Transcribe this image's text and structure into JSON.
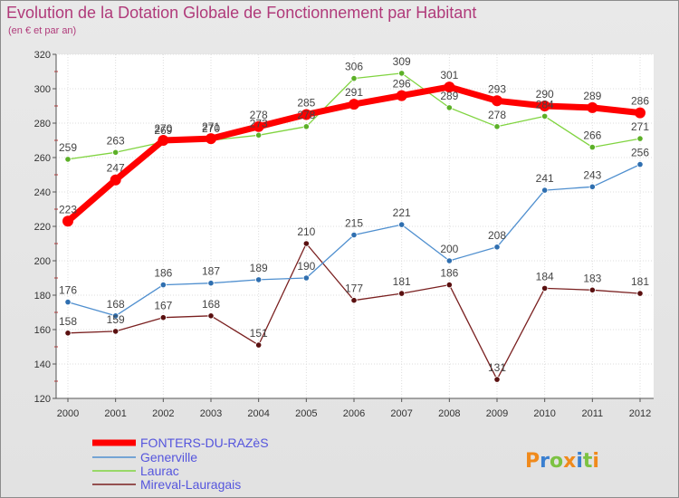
{
  "chart_data": {
    "type": "line",
    "title": "Evolution de la Dotation Globale de Fonctionnement par Habitant",
    "subtitle": "(en € et par an)",
    "xlabel": "",
    "ylabel": "",
    "ylim": [
      120,
      320
    ],
    "yticks": [
      120,
      140,
      160,
      180,
      200,
      220,
      240,
      260,
      280,
      300,
      320
    ],
    "grid": true,
    "categories": [
      "2000",
      "2001",
      "2002",
      "2003",
      "2004",
      "2005",
      "2006",
      "2007",
      "2008",
      "2009",
      "2010",
      "2011",
      "2012"
    ],
    "series": [
      {
        "name": "FONTERS-DU-RAZèS",
        "color": "#ff0000",
        "values": [
          223,
          247,
          270,
          271,
          278,
          285,
          291,
          296,
          301,
          293,
          290,
          289,
          286
        ]
      },
      {
        "name": "Generville",
        "color": "#4f8fcf",
        "values": [
          176,
          168,
          186,
          187,
          189,
          190,
          215,
          221,
          200,
          208,
          241,
          243,
          256
        ]
      },
      {
        "name": "Laurac",
        "color": "#80d440",
        "values": [
          259,
          263,
          269,
          270,
          273,
          278,
          306,
          309,
          289,
          278,
          284,
          266,
          271
        ]
      },
      {
        "name": "Mireval-Lauragais",
        "color": "#7a2020",
        "values": [
          158,
          159,
          167,
          168,
          151,
          210,
          177,
          181,
          186,
          131,
          184,
          183,
          181
        ]
      }
    ],
    "legend": [
      {
        "name": "FONTERS-DU-RAZèS",
        "text_color": "#5555dd"
      },
      {
        "name": "Generville",
        "text_color": "#5555dd"
      },
      {
        "name": "Laurac",
        "text_color": "#5555dd"
      },
      {
        "name": "Mireval-Lauragais",
        "text_color": "#5555dd"
      }
    ],
    "legend_position": "bottom-left"
  },
  "logo": {
    "text": "Proxiti",
    "letters": [
      "P",
      "r",
      "o",
      "x",
      "i",
      "t",
      "i"
    ],
    "letter_colors": [
      "#f08a1c",
      "#3a7fd0",
      "#7cc242",
      "#f08a1c",
      "#3a7fd0",
      "#7cc242",
      "#f08a1c"
    ]
  }
}
